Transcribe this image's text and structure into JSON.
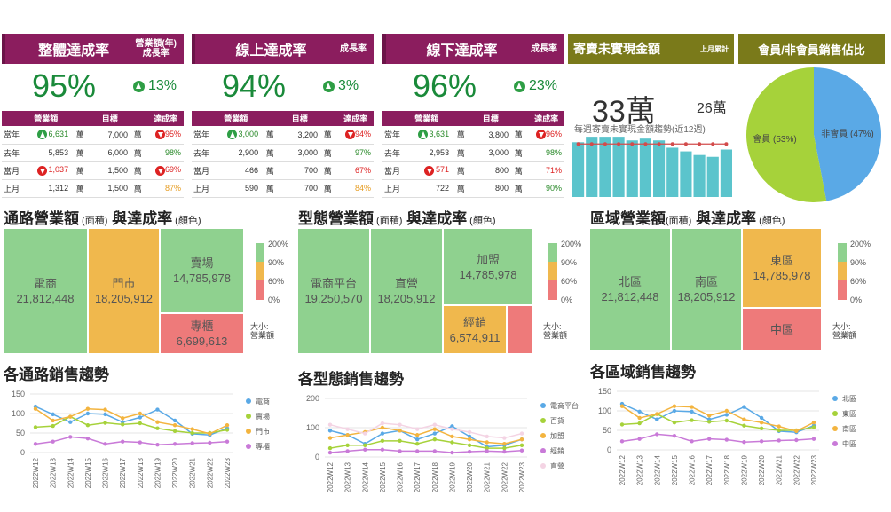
{
  "kpi_cards": [
    {
      "title": "整體達成率",
      "subtitle": "營業額(年)\n成長率",
      "rate": "95%",
      "growth": "13%",
      "cols": [
        "營業額",
        "目標",
        "達成率"
      ],
      "rows": [
        {
          "label": "當年",
          "arrow": "up",
          "value": "6,631",
          "unit": "萬",
          "target": "7,000",
          "unit2": "萬",
          "pct": "95%",
          "pct_arrow": "dn",
          "pct_color": "red"
        },
        {
          "label": "去年",
          "arrow": "",
          "value": "5,853",
          "unit": "萬",
          "target": "6,000",
          "unit2": "萬",
          "pct": "98%",
          "pct_arrow": "",
          "pct_color": "grn"
        },
        {
          "label": "當月",
          "arrow": "dn",
          "value": "1,037",
          "unit": "萬",
          "target": "1,500",
          "unit2": "萬",
          "pct": "69%",
          "pct_arrow": "dn",
          "pct_color": "red"
        },
        {
          "label": "上月",
          "arrow": "",
          "value": "1,312",
          "unit": "萬",
          "target": "1,500",
          "unit2": "萬",
          "pct": "87%",
          "pct_arrow": "",
          "pct_color": "org"
        }
      ]
    },
    {
      "title": "線上達成率",
      "subtitle": "成長率",
      "rate": "94%",
      "growth": "3%",
      "cols": [
        "營業額",
        "目標",
        "達成率"
      ],
      "rows": [
        {
          "label": "當年",
          "arrow": "up",
          "value": "3,000",
          "unit": "萬",
          "target": "3,200",
          "unit2": "萬",
          "pct": "94%",
          "pct_arrow": "dn",
          "pct_color": "red"
        },
        {
          "label": "去年",
          "arrow": "",
          "value": "2,900",
          "unit": "萬",
          "target": "3,000",
          "unit2": "萬",
          "pct": "97%",
          "pct_arrow": "",
          "pct_color": "grn"
        },
        {
          "label": "當月",
          "arrow": "",
          "value": "466",
          "unit": "萬",
          "target": "700",
          "unit2": "萬",
          "pct": "67%",
          "pct_arrow": "",
          "pct_color": "red"
        },
        {
          "label": "上月",
          "arrow": "",
          "value": "590",
          "unit": "萬",
          "target": "700",
          "unit2": "萬",
          "pct": "84%",
          "pct_arrow": "",
          "pct_color": "org"
        }
      ]
    },
    {
      "title": "線下達成率",
      "subtitle": "成長率",
      "rate": "96%",
      "growth": "23%",
      "cols": [
        "營業額",
        "目標",
        "達成率"
      ],
      "rows": [
        {
          "label": "當年",
          "arrow": "up",
          "value": "3,631",
          "unit": "萬",
          "target": "3,800",
          "unit2": "萬",
          "pct": "96%",
          "pct_arrow": "dn",
          "pct_color": "red"
        },
        {
          "label": "去年",
          "arrow": "",
          "value": "2,953",
          "unit": "萬",
          "target": "3,000",
          "unit2": "萬",
          "pct": "98%",
          "pct_arrow": "",
          "pct_color": "grn"
        },
        {
          "label": "當月",
          "arrow": "dn",
          "value": "571",
          "unit": "萬",
          "target": "800",
          "unit2": "萬",
          "pct": "71%",
          "pct_arrow": "",
          "pct_color": "red"
        },
        {
          "label": "上月",
          "arrow": "",
          "value": "722",
          "unit": "萬",
          "target": "800",
          "unit2": "萬",
          "pct": "90%",
          "pct_arrow": "",
          "pct_color": "grn"
        }
      ]
    }
  ],
  "consignment": {
    "title": "寄賣未實現金額",
    "subtitle": "上月累計",
    "big": "33萬",
    "side": "26萬",
    "caption": "每週寄賣未實現金額趨勢(近12週)",
    "bars": [
      30,
      33,
      33,
      33,
      31,
      32,
      31,
      27,
      25,
      23,
      22,
      26
    ],
    "line": [
      31,
      31,
      31,
      31,
      31,
      31,
      31,
      31,
      31,
      31,
      31,
      31
    ]
  },
  "member": {
    "title": "會員/非會員銷售佔比",
    "member_label": "會員 (53%)",
    "nonmember_label": "非會員 (47%)",
    "member_pct": 53,
    "nonmember_pct": 47
  },
  "treemaps": [
    {
      "title": "通路營業額",
      "title_small": " (面積)",
      "title2": "與達成率",
      "title2_small": " (顏色)",
      "tiles": [
        {
          "name": "電商",
          "value": "21,812,448",
          "c": "g"
        },
        {
          "name": "門市",
          "value": "18,205,912",
          "c": "o"
        },
        {
          "name": "賣場",
          "value": "14,785,978",
          "c": "g"
        },
        {
          "name": "專櫃",
          "value": "6,699,613",
          "c": "r"
        }
      ],
      "scale": [
        "200%",
        "90%",
        "60%",
        "0%"
      ],
      "size_label": "大小:\n營業額"
    },
    {
      "title": "型態營業額",
      "title_small": " (面積)",
      "title2": "與達成率",
      "title2_small": " (顏色)",
      "tiles": [
        {
          "name": "電商平台",
          "value": "19,250,570",
          "c": "g"
        },
        {
          "name": "直營",
          "value": "18,205,912",
          "c": "g"
        },
        {
          "name": "加盟",
          "value": "14,785,978",
          "c": "g"
        },
        {
          "name": "經銷",
          "value": "6,574,911",
          "c": "o"
        },
        {
          "name": "",
          "value": "",
          "c": "r"
        }
      ],
      "scale": [
        "200%",
        "90%",
        "60%",
        "0%"
      ],
      "size_label": "大小:\n營業額"
    },
    {
      "title": "區域營業額",
      "title_small": "(面積)",
      "title2": "與達成率",
      "title2_small": " (顏色)",
      "tiles": [
        {
          "name": "北區",
          "value": "21,812,448",
          "c": "g"
        },
        {
          "name": "南區",
          "value": "18,205,912",
          "c": "g"
        },
        {
          "name": "東區",
          "value": "14,785,978",
          "c": "o"
        },
        {
          "name": "中區",
          "value": "",
          "c": "r"
        }
      ],
      "scale": [
        "200%",
        "90%",
        "60%",
        "0%"
      ],
      "size_label": "大小:\n營業額"
    }
  ],
  "chart_data": [
    {
      "type": "line",
      "title": "各通路銷售趨勢",
      "ylim": [
        0,
        150
      ],
      "yticks": [
        0,
        50,
        100,
        150
      ],
      "categories": [
        "2022W12",
        "2022W13",
        "2022W14",
        "2022W15",
        "2022W16",
        "2022W17",
        "2022W18",
        "2022W19",
        "2022W20",
        "2022W21",
        "2022W22",
        "2022W23"
      ],
      "series": [
        {
          "name": "電商",
          "color": "#5aa9e6",
          "values": [
            118,
            98,
            78,
            100,
            98,
            78,
            90,
            110,
            82,
            48,
            45,
            62
          ]
        },
        {
          "name": "賣場",
          "color": "#a6d23a",
          "values": [
            65,
            68,
            92,
            70,
            76,
            72,
            75,
            62,
            55,
            50,
            50,
            58
          ]
        },
        {
          "name": "門市",
          "color": "#f3b43f",
          "values": [
            112,
            82,
            92,
            112,
            110,
            88,
            100,
            78,
            70,
            60,
            48,
            70
          ]
        },
        {
          "name": "專櫃",
          "color": "#c97ad8",
          "values": [
            22,
            28,
            40,
            36,
            22,
            28,
            26,
            20,
            22,
            24,
            25,
            28
          ]
        }
      ]
    },
    {
      "type": "line",
      "title": "各型態銷售趨勢",
      "ylim": [
        0,
        200
      ],
      "yticks": [
        0,
        100,
        200
      ],
      "categories": [
        "2022W12",
        "2022W13",
        "2022W14",
        "2022W15",
        "2022W16",
        "2022W17",
        "2022W18",
        "2022W19",
        "2022W20",
        "2022W21",
        "2022W22",
        "2022W23"
      ],
      "series": [
        {
          "name": "電商平台",
          "color": "#5aa9e6",
          "values": [
            90,
            75,
            45,
            80,
            90,
            60,
            80,
            105,
            70,
            35,
            40,
            60
          ]
        },
        {
          "name": "百貨",
          "color": "#a6d23a",
          "values": [
            30,
            40,
            40,
            55,
            55,
            45,
            60,
            50,
            40,
            30,
            30,
            40
          ]
        },
        {
          "name": "加盟",
          "color": "#f3b43f",
          "values": [
            65,
            75,
            85,
            100,
            90,
            75,
            95,
            70,
            60,
            50,
            45,
            60
          ]
        },
        {
          "name": "經銷",
          "color": "#c97ad8",
          "values": [
            15,
            20,
            25,
            25,
            20,
            20,
            20,
            15,
            18,
            20,
            18,
            22
          ]
        },
        {
          "name": "直營",
          "color": "#f4d4e4",
          "values": [
            110,
            95,
            80,
            115,
            110,
            95,
            110,
            95,
            85,
            70,
            65,
            80
          ]
        }
      ]
    },
    {
      "type": "line",
      "title": "各區域銷售趨勢",
      "ylim": [
        0,
        150
      ],
      "yticks": [
        0,
        50,
        100,
        150
      ],
      "categories": [
        "2022W12",
        "2022W13",
        "2022W14",
        "2022W15",
        "2022W16",
        "2022W17",
        "2022W18",
        "2022W19",
        "2022W20",
        "2022W21",
        "2022W22",
        "2022W23"
      ],
      "series": [
        {
          "name": "北區",
          "color": "#5aa9e6",
          "values": [
            118,
            98,
            78,
            100,
            98,
            78,
            90,
            110,
            82,
            48,
            45,
            62
          ]
        },
        {
          "name": "東區",
          "color": "#a6d23a",
          "values": [
            65,
            68,
            92,
            70,
            76,
            72,
            75,
            62,
            55,
            50,
            50,
            58
          ]
        },
        {
          "name": "南區",
          "color": "#f3b43f",
          "values": [
            112,
            82,
            92,
            112,
            110,
            88,
            100,
            78,
            70,
            60,
            48,
            70
          ]
        },
        {
          "name": "中區",
          "color": "#c97ad8",
          "values": [
            22,
            28,
            40,
            36,
            22,
            28,
            26,
            20,
            22,
            24,
            25,
            28
          ]
        }
      ]
    }
  ]
}
